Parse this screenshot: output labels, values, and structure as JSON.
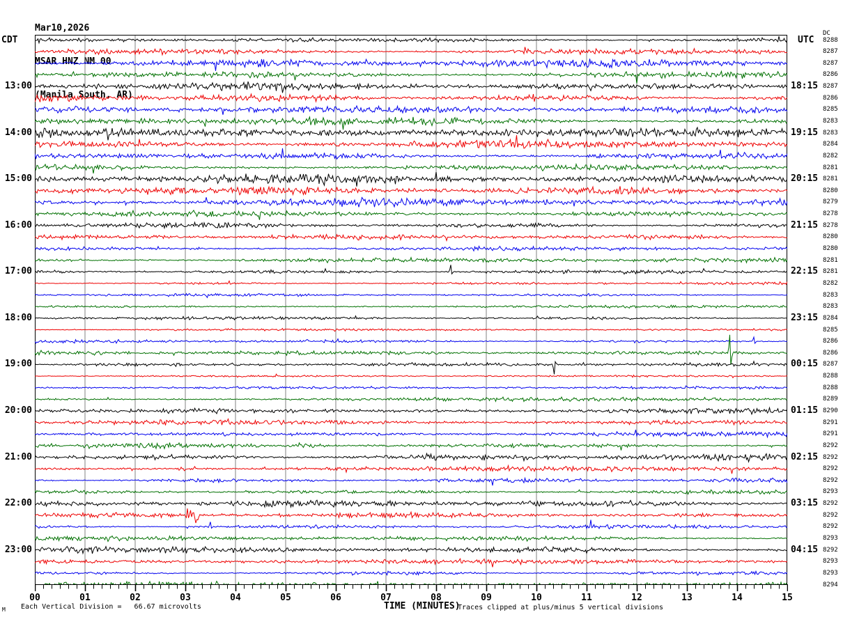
{
  "header": {
    "date": "Mar10,2026",
    "station": "MSAR HNZ NM 00",
    "location": "(Manila South, AR)"
  },
  "labels": {
    "left_timezone": "CDT",
    "right_timezone": "UTC",
    "dc_column": "DC"
  },
  "footer": {
    "division_note": "Each Vertical Division =   66.67 microvolts",
    "axis_title": "TIME (MINUTES)",
    "clip_note": "Traces clipped at plus/minus 5 vertical divisions",
    "watermark": "M"
  },
  "colors": {
    "black": "#000000",
    "red": "#ee0000",
    "blue": "#0000ee",
    "green": "#007000",
    "grid": "#808080",
    "frame": "#000000"
  },
  "chart_data": {
    "type": "seismogram-helicorder",
    "xlabel": "TIME (MINUTES)",
    "x_range_minutes": [
      0,
      15
    ],
    "minutes_per_line": 15,
    "ticks_per_minute": 6,
    "clip_divisions": 5,
    "microvolts_per_division": "66.67",
    "tick_labels": [
      "00",
      "01",
      "02",
      "03",
      "04",
      "05",
      "06",
      "07",
      "08",
      "09",
      "10",
      "11",
      "12",
      "13",
      "14",
      "15"
    ],
    "rows": [
      {
        "color": "black",
        "cdt": "",
        "utc": "",
        "dc": "8288",
        "amp": 2.2,
        "spikes": [],
        "bursts": []
      },
      {
        "color": "red",
        "cdt": "",
        "utc": "",
        "dc": "8287",
        "amp": 3.0,
        "spikes": [],
        "bursts": []
      },
      {
        "color": "blue",
        "cdt": "",
        "utc": "",
        "dc": "8287",
        "amp": 3.2,
        "spikes": [],
        "bursts": []
      },
      {
        "color": "green",
        "cdt": "",
        "utc": "",
        "dc": "8286",
        "amp": 3.0,
        "spikes": [],
        "bursts": []
      },
      {
        "color": "black",
        "cdt": "13:00",
        "utc": "18:15",
        "dc": "8287",
        "amp": 3.0,
        "spikes": [],
        "bursts": [
          [
            13.4,
            15,
            1.6
          ]
        ]
      },
      {
        "color": "red",
        "cdt": "",
        "utc": "",
        "dc": "8286",
        "amp": 3.4,
        "spikes": [],
        "bursts": []
      },
      {
        "color": "blue",
        "cdt": "",
        "utc": "",
        "dc": "8285",
        "amp": 3.0,
        "spikes": [],
        "bursts": []
      },
      {
        "color": "green",
        "cdt": "",
        "utc": "",
        "dc": "8283",
        "amp": 3.4,
        "spikes": [],
        "bursts": []
      },
      {
        "color": "black",
        "cdt": "14:00",
        "utc": "19:15",
        "dc": "8283",
        "amp": 3.8,
        "spikes": [],
        "bursts": [
          [
            0,
            0.5,
            1.5
          ]
        ]
      },
      {
        "color": "red",
        "cdt": "",
        "utc": "",
        "dc": "8284",
        "amp": 3.4,
        "spikes": [],
        "bursts": []
      },
      {
        "color": "blue",
        "cdt": "",
        "utc": "",
        "dc": "8282",
        "amp": 3.0,
        "spikes": [],
        "bursts": []
      },
      {
        "color": "green",
        "cdt": "",
        "utc": "",
        "dc": "8281",
        "amp": 3.0,
        "spikes": [],
        "bursts": []
      },
      {
        "color": "black",
        "cdt": "15:00",
        "utc": "20:15",
        "dc": "8281",
        "amp": 3.8,
        "spikes": [],
        "bursts": [
          [
            0,
            0.4,
            1.5
          ]
        ]
      },
      {
        "color": "red",
        "cdt": "",
        "utc": "",
        "dc": "8280",
        "amp": 3.4,
        "spikes": [],
        "bursts": []
      },
      {
        "color": "blue",
        "cdt": "",
        "utc": "",
        "dc": "8279",
        "amp": 3.4,
        "spikes": [],
        "bursts": []
      },
      {
        "color": "green",
        "cdt": "",
        "utc": "",
        "dc": "8278",
        "amp": 2.6,
        "spikes": [],
        "bursts": []
      },
      {
        "color": "black",
        "cdt": "16:00",
        "utc": "21:15",
        "dc": "8278",
        "amp": 2.4,
        "spikes": [],
        "bursts": []
      },
      {
        "color": "red",
        "cdt": "",
        "utc": "",
        "dc": "8280",
        "amp": 2.0,
        "spikes": [],
        "bursts": []
      },
      {
        "color": "blue",
        "cdt": "",
        "utc": "",
        "dc": "8280",
        "amp": 2.0,
        "spikes": [],
        "bursts": []
      },
      {
        "color": "green",
        "cdt": "",
        "utc": "",
        "dc": "8281",
        "amp": 2.0,
        "spikes": [],
        "bursts": []
      },
      {
        "color": "black",
        "cdt": "17:00",
        "utc": "22:15",
        "dc": "8281",
        "amp": 1.7,
        "spikes": [
          [
            8.3,
            10,
            3
          ]
        ],
        "bursts": []
      },
      {
        "color": "red",
        "cdt": "",
        "utc": "",
        "dc": "8282",
        "amp": 1.1,
        "spikes": [],
        "bursts": []
      },
      {
        "color": "blue",
        "cdt": "",
        "utc": "",
        "dc": "8283",
        "amp": 1.2,
        "spikes": [],
        "bursts": []
      },
      {
        "color": "green",
        "cdt": "",
        "utc": "",
        "dc": "8283",
        "amp": 1.1,
        "spikes": [],
        "bursts": []
      },
      {
        "color": "black",
        "cdt": "18:00",
        "utc": "23:15",
        "dc": "8284",
        "amp": 1.4,
        "spikes": [],
        "bursts": []
      },
      {
        "color": "red",
        "cdt": "",
        "utc": "",
        "dc": "8285",
        "amp": 0.9,
        "spikes": [],
        "bursts": []
      },
      {
        "color": "blue",
        "cdt": "",
        "utc": "",
        "dc": "8286",
        "amp": 1.4,
        "spikes": [
          [
            14.33,
            6,
            3
          ]
        ],
        "bursts": []
      },
      {
        "color": "green",
        "cdt": "",
        "utc": "",
        "dc": "8286",
        "amp": 1.9,
        "spikes": [
          [
            13.86,
            26,
            17
          ]
        ],
        "bursts": []
      },
      {
        "color": "black",
        "cdt": "19:00",
        "utc": "00:15",
        "dc": "8287",
        "amp": 1.4,
        "spikes": [
          [
            10.35,
            -14,
            -4
          ]
        ],
        "bursts": []
      },
      {
        "color": "red",
        "cdt": "",
        "utc": "",
        "dc": "8288",
        "amp": 0.8,
        "spikes": [],
        "bursts": []
      },
      {
        "color": "blue",
        "cdt": "",
        "utc": "",
        "dc": "8288",
        "amp": 1.1,
        "spikes": [],
        "bursts": []
      },
      {
        "color": "green",
        "cdt": "",
        "utc": "",
        "dc": "8289",
        "amp": 2.0,
        "spikes": [],
        "bursts": []
      },
      {
        "color": "black",
        "cdt": "20:00",
        "utc": "01:15",
        "dc": "8290",
        "amp": 2.4,
        "spikes": [],
        "bursts": []
      },
      {
        "color": "red",
        "cdt": "",
        "utc": "",
        "dc": "8291",
        "amp": 2.4,
        "spikes": [],
        "bursts": []
      },
      {
        "color": "blue",
        "cdt": "",
        "utc": "",
        "dc": "8291",
        "amp": 2.1,
        "spikes": [],
        "bursts": []
      },
      {
        "color": "green",
        "cdt": "",
        "utc": "",
        "dc": "8292",
        "amp": 2.4,
        "spikes": [],
        "bursts": [
          [
            5.2,
            5.8,
            2.0
          ]
        ]
      },
      {
        "color": "black",
        "cdt": "21:00",
        "utc": "02:15",
        "dc": "8292",
        "amp": 2.7,
        "spikes": [],
        "bursts": []
      },
      {
        "color": "red",
        "cdt": "",
        "utc": "",
        "dc": "8292",
        "amp": 2.1,
        "spikes": [],
        "bursts": [
          [
            2.85,
            3.15,
            3.5
          ]
        ]
      },
      {
        "color": "blue",
        "cdt": "",
        "utc": "",
        "dc": "8292",
        "amp": 2.0,
        "spikes": [],
        "bursts": []
      },
      {
        "color": "green",
        "cdt": "",
        "utc": "",
        "dc": "8293",
        "amp": 1.9,
        "spikes": [],
        "bursts": []
      },
      {
        "color": "black",
        "cdt": "22:00",
        "utc": "03:15",
        "dc": "8292",
        "amp": 2.7,
        "spikes": [],
        "bursts": []
      },
      {
        "color": "red",
        "cdt": "",
        "utc": "",
        "dc": "8292",
        "amp": 2.1,
        "spikes": [],
        "bursts": [
          [
            3.0,
            3.3,
            4.0
          ]
        ]
      },
      {
        "color": "blue",
        "cdt": "",
        "utc": "",
        "dc": "8292",
        "amp": 1.7,
        "spikes": [
          [
            3.5,
            7,
            2
          ]
        ],
        "bursts": []
      },
      {
        "color": "green",
        "cdt": "",
        "utc": "",
        "dc": "8293",
        "amp": 2.1,
        "spikes": [],
        "bursts": []
      },
      {
        "color": "black",
        "cdt": "23:00",
        "utc": "04:15",
        "dc": "8292",
        "amp": 2.7,
        "spikes": [],
        "bursts": []
      },
      {
        "color": "red",
        "cdt": "",
        "utc": "",
        "dc": "8293",
        "amp": 2.4,
        "spikes": [],
        "bursts": []
      },
      {
        "color": "blue",
        "cdt": "",
        "utc": "",
        "dc": "8293",
        "amp": 1.7,
        "spikes": [],
        "bursts": []
      },
      {
        "color": "green",
        "cdt": "",
        "utc": "",
        "dc": "8294",
        "amp": 2.4,
        "spikes": [],
        "bursts": []
      }
    ]
  }
}
